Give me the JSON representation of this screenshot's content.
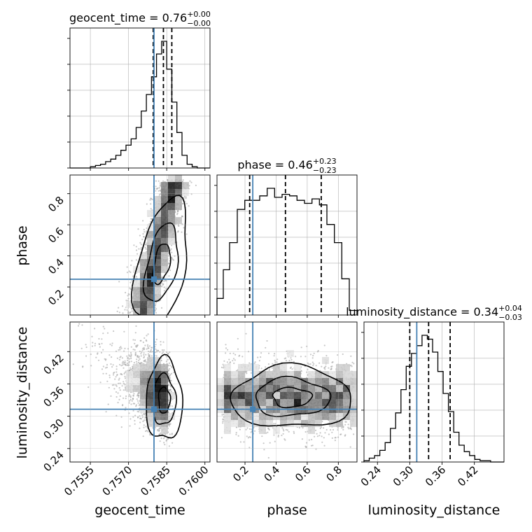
{
  "chart_data": {
    "type": "corner",
    "parameters": [
      "geocent_time",
      "phase",
      "luminosity_distance"
    ],
    "axis_labels": {
      "geocent_time": "geocent_time",
      "phase": "phase",
      "luminosity_distance": "luminosity_distance"
    },
    "titles": {
      "geocent_time": {
        "name": "geocent_time",
        "median": "0.76",
        "plus": "+0.00",
        "minus": "−0.00"
      },
      "phase": {
        "name": "phase",
        "median": "0.46",
        "plus": "+0.23",
        "minus": "−0.23"
      },
      "luminosity_distance": {
        "name": "luminosity_distance",
        "median": "0.34",
        "plus": "+0.04",
        "minus": "−0.03"
      }
    },
    "ranges": {
      "geocent_time": [
        0.7547,
        0.7602
      ],
      "phase": [
        0.02,
        0.92
      ],
      "luminosity_distance": [
        0.215,
        0.475
      ]
    },
    "ticks": {
      "geocent_time": [
        0.7555,
        0.757,
        0.7585,
        0.76
      ],
      "phase": [
        0.2,
        0.4,
        0.6,
        0.8
      ],
      "luminosity_distance": [
        0.24,
        0.3,
        0.36,
        0.42
      ]
    },
    "tick_labels": {
      "geocent_time": [
        "0.7555",
        "0.7570",
        "0.7585",
        "0.7600"
      ],
      "phase": [
        "0.2",
        "0.4",
        "0.6",
        "0.8"
      ],
      "luminosity_distance": [
        "0.24",
        "0.30",
        "0.36",
        "0.42"
      ]
    },
    "truths": {
      "geocent_time": 0.758,
      "phase": 0.25,
      "luminosity_distance": 0.313
    },
    "quantiles": {
      "geocent_time": [
        0.75797,
        0.75837,
        0.7587
      ],
      "phase": [
        0.23,
        0.46,
        0.69
      ],
      "luminosity_distance": [
        0.3,
        0.335,
        0.375
      ]
    },
    "histograms": {
      "geocent_time": {
        "edges": [
          0.7547,
          0.7549,
          0.7551,
          0.7553,
          0.7555,
          0.7557,
          0.7559,
          0.7561,
          0.7563,
          0.7565,
          0.7567,
          0.7569,
          0.7571,
          0.7573,
          0.7575,
          0.7577,
          0.7579,
          0.7581,
          0.7583,
          0.7585,
          0.7587,
          0.7589,
          0.7591,
          0.7593,
          0.7595,
          0.7597,
          0.7599,
          0.7602
        ],
        "counts": [
          0,
          0,
          0,
          0,
          1,
          2,
          3,
          5,
          7,
          10,
          14,
          18,
          23,
          32,
          45,
          58,
          72,
          90,
          100,
          78,
          52,
          28,
          10,
          3,
          1,
          0,
          0
        ]
      },
      "phase": {
        "edges": [
          0.02,
          0.0605,
          0.101,
          0.1505,
          0.1985,
          0.2465,
          0.2945,
          0.3425,
          0.3905,
          0.4385,
          0.4865,
          0.5345,
          0.5825,
          0.6305,
          0.6785,
          0.7265,
          0.7745,
          0.8225,
          0.8705,
          0.92
        ],
        "counts": [
          11,
          30,
          48,
          70,
          76,
          76,
          79,
          84,
          78,
          80,
          79,
          76,
          74,
          77,
          73,
          60,
          48,
          24,
          3
        ]
      },
      "luminosity_distance": {
        "edges": [
          0.215,
          0.2248,
          0.2346,
          0.2444,
          0.2542,
          0.264,
          0.2738,
          0.2836,
          0.2934,
          0.3032,
          0.313,
          0.3228,
          0.3326,
          0.3424,
          0.3522,
          0.362,
          0.3718,
          0.3816,
          0.3914,
          0.4012,
          0.411,
          0.4208,
          0.4306,
          0.4404,
          0.4502,
          0.46,
          0.475
        ],
        "counts": [
          1,
          3,
          5,
          9,
          15,
          26,
          38,
          56,
          74,
          84,
          90,
          98,
          95,
          85,
          70,
          53,
          39,
          23,
          13,
          8,
          5,
          2,
          1,
          1,
          0,
          0
        ]
      }
    },
    "joint_panels": [
      {
        "x": "geocent_time",
        "y": "phase",
        "correlation": "strong-positive",
        "mode": {
          "x": 0.7583,
          "y": 0.35
        }
      },
      {
        "x": "geocent_time",
        "y": "luminosity_distance",
        "correlation": "negative",
        "mode": {
          "x": 0.7584,
          "y": 0.33
        }
      },
      {
        "x": "phase",
        "y": "luminosity_distance",
        "correlation": "none",
        "mode": {
          "x": 0.5,
          "y": 0.335
        }
      }
    ],
    "colors": {
      "truth": "#4682b4",
      "hist": "#000000",
      "quantile": "#000000",
      "points": "#999999",
      "grid": "#b0b0b0"
    },
    "grid": true
  }
}
